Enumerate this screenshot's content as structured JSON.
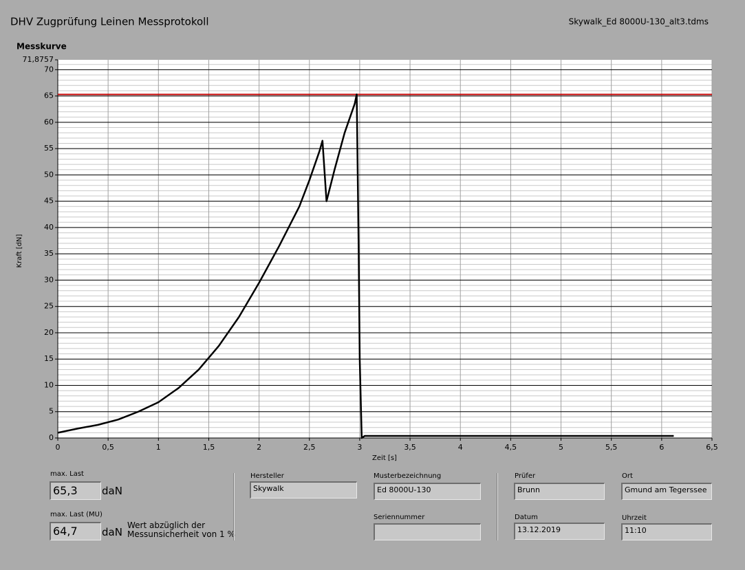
{
  "header": {
    "title": "DHV Zugprüfung Leinen Messprotokoll",
    "file_name": "Skywalk_Ed 8000U-130_alt3.tdms"
  },
  "chart_data": {
    "type": "line",
    "title": "Messkurve",
    "x_label": "Zeit [s]",
    "y_label": "Kraft [dN]",
    "x": [
      0,
      0.2,
      0.4,
      0.6,
      0.8,
      1.0,
      1.2,
      1.4,
      1.6,
      1.8,
      2.0,
      2.2,
      2.4,
      2.5,
      2.6,
      2.63,
      2.67,
      2.75,
      2.85,
      2.95,
      2.97,
      2.99,
      3.0,
      3.02,
      3.05,
      3.5,
      4.0,
      4.5,
      5.0,
      5.5,
      6.0,
      6.12
    ],
    "series": [
      {
        "color": "#000000",
        "values": [
          1,
          1.8,
          2.5,
          3.5,
          5,
          6.8,
          9.5,
          13,
          17.5,
          23,
          29.5,
          36.5,
          44,
          49,
          54.5,
          56.5,
          45,
          51,
          58,
          63.5,
          65.3,
          35,
          15,
          0,
          0.4,
          0.4,
          0.4,
          0.4,
          0.4,
          0.4,
          0.4,
          0.4
        ]
      }
    ],
    "reference_line": {
      "value": 65.3,
      "color": "#c00000"
    },
    "xlim": [
      0,
      6.5
    ],
    "xticks": [
      0,
      {
        "value": 0.5,
        "label": "0,5"
      },
      1,
      {
        "value": 1.5,
        "label": "1,5"
      },
      2,
      {
        "value": 2.5,
        "label": "2,5"
      },
      3,
      {
        "value": 3.5,
        "label": "3,5"
      },
      4,
      {
        "value": 4.5,
        "label": "4,5"
      },
      5,
      {
        "value": 5.5,
        "label": "5,5"
      },
      6,
      {
        "value": 6.5,
        "label": "6,5"
      }
    ],
    "ylim": [
      0,
      71.8757
    ],
    "yticks": [
      0,
      5,
      10,
      15,
      20,
      25,
      30,
      35,
      40,
      45,
      50,
      55,
      60,
      65,
      70,
      {
        "value": 71.8757,
        "label": "71,8757"
      }
    ],
    "grid": true,
    "minor_ystep": 1
  },
  "results": {
    "max_load": {
      "label": "max. Last",
      "value": "65,3",
      "unit": "daN"
    },
    "max_load_mu": {
      "label": "max. Last (MU)",
      "value": "64,7",
      "unit": "daN",
      "note": "Wert abzüglich der\nMessunsicherheit von 1 %"
    }
  },
  "fields": {
    "hersteller": {
      "label": "Hersteller",
      "value": "Skywalk"
    },
    "musterbezeichnung": {
      "label": "Musterbezeichnung",
      "value": "Ed 8000U-130"
    },
    "seriennummer": {
      "label": "Seriennummer"
    },
    "pruefer": {
      "label": "Prüfer",
      "value": "Brunn"
    },
    "ort": {
      "label": "Ort",
      "value": "Gmund am Tegerssee"
    },
    "datum": {
      "label": "Datum",
      "value": "13.12.2019"
    },
    "uhrzeit": {
      "label": "Uhrzeit",
      "value": "11:10"
    }
  }
}
